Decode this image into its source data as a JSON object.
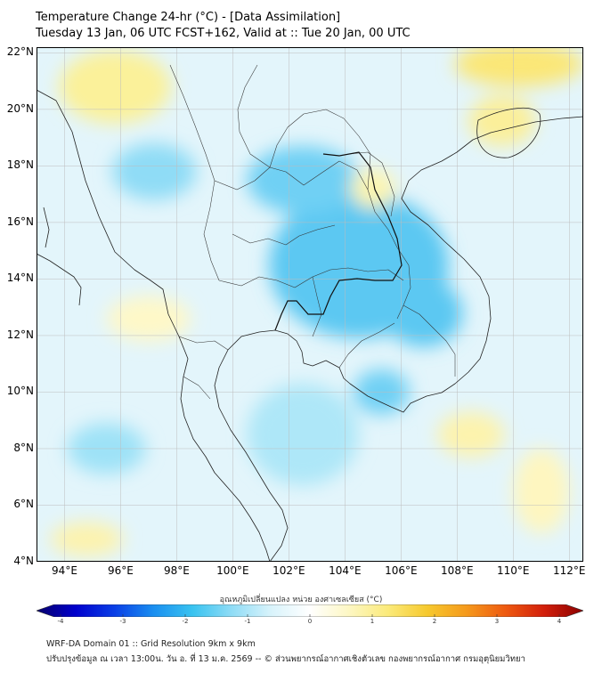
{
  "header": {
    "title_line1": "Temperature Change 24-hr (°C) - [Data Assimilation]",
    "title_line2": "Tuesday 13 Jan, 06 UTC FCST+162, Valid at :: Tue 20 Jan, 00 UTC"
  },
  "map": {
    "lat_labels": [
      {
        "value": 22,
        "label": "22°N"
      },
      {
        "value": 20,
        "label": "20°N"
      },
      {
        "value": 18,
        "label": "18°N"
      },
      {
        "value": 16,
        "label": "16°N"
      },
      {
        "value": 14,
        "label": "14°N"
      },
      {
        "value": 12,
        "label": "12°N"
      },
      {
        "value": 10,
        "label": "10°N"
      },
      {
        "value": 8,
        "label": "8°N"
      },
      {
        "value": 6,
        "label": "6°N"
      },
      {
        "value": 4,
        "label": "4°N"
      }
    ],
    "lon_labels": [
      {
        "value": 94,
        "label": "94°E"
      },
      {
        "value": 96,
        "label": "96°E"
      },
      {
        "value": 98,
        "label": "98°E"
      },
      {
        "value": 100,
        "label": "100°E"
      },
      {
        "value": 102,
        "label": "102°E"
      },
      {
        "value": 104,
        "label": "104°E"
      },
      {
        "value": 106,
        "label": "106°E"
      },
      {
        "value": 108,
        "label": "108°E"
      },
      {
        "value": 110,
        "label": "110°E"
      },
      {
        "value": 112,
        "label": "112°E"
      }
    ],
    "extent": {
      "lon_min": 93,
      "lon_max": 112.5,
      "lat_min": 4,
      "lat_max": 22.2
    },
    "field_blobs": [
      {
        "lon": 103.5,
        "lat": 14.0,
        "rx": 1.3,
        "ry": 1.0,
        "color": "#33b5ee"
      },
      {
        "lon": 104.5,
        "lat": 14.5,
        "rx": 3.2,
        "ry": 2.6,
        "color": "#5cc8f2"
      },
      {
        "lon": 102.5,
        "lat": 17.5,
        "rx": 2.0,
        "ry": 1.2,
        "color": "#6fd0f4"
      },
      {
        "lon": 106.8,
        "lat": 12.8,
        "rx": 1.4,
        "ry": 1.2,
        "color": "#5cc8f2"
      },
      {
        "lon": 105.3,
        "lat": 10.0,
        "rx": 1.0,
        "ry": 0.8,
        "color": "#6fd0f4"
      },
      {
        "lon": 97.2,
        "lat": 17.8,
        "rx": 1.5,
        "ry": 1.0,
        "color": "#8fdcf6"
      },
      {
        "lon": 95.5,
        "lat": 8.0,
        "rx": 1.4,
        "ry": 0.9,
        "color": "#9ee2f7"
      },
      {
        "lon": 102.5,
        "lat": 8.5,
        "rx": 2.0,
        "ry": 1.8,
        "color": "#aee7f8"
      },
      {
        "lon": 95.8,
        "lat": 20.8,
        "rx": 2.0,
        "ry": 1.3,
        "color": "#fbf19a"
      },
      {
        "lon": 110.2,
        "lat": 21.6,
        "rx": 2.3,
        "ry": 0.8,
        "color": "#fbe777"
      },
      {
        "lon": 109.6,
        "lat": 19.6,
        "rx": 1.2,
        "ry": 0.9,
        "color": "#fbef9a"
      },
      {
        "lon": 105.0,
        "lat": 17.2,
        "rx": 0.8,
        "ry": 0.7,
        "color": "#fdf5b0"
      },
      {
        "lon": 108.5,
        "lat": 8.5,
        "rx": 1.2,
        "ry": 0.8,
        "color": "#fdf3ad"
      },
      {
        "lon": 94.8,
        "lat": 4.8,
        "rx": 1.3,
        "ry": 0.6,
        "color": "#fdf3ad"
      },
      {
        "lon": 97.0,
        "lat": 12.6,
        "rx": 1.5,
        "ry": 0.8,
        "color": "#fef8c8"
      },
      {
        "lon": 111.0,
        "lat": 6.5,
        "rx": 1.0,
        "ry": 1.5,
        "color": "#fef6c0"
      }
    ]
  },
  "colorbar": {
    "label": "อุณหภูมิเปลี่ยนแปลง หน่วย องศาเซลเซียส (°C)",
    "min": -4,
    "max": 4,
    "ticks": [
      {
        "value": -4,
        "label": "-4"
      },
      {
        "value": -3,
        "label": "-3"
      },
      {
        "value": -2,
        "label": "-2"
      },
      {
        "value": -1,
        "label": "-1"
      },
      {
        "value": 0,
        "label": "0"
      },
      {
        "value": 1,
        "label": "1"
      },
      {
        "value": 2,
        "label": "2"
      },
      {
        "value": 3,
        "label": "3"
      },
      {
        "value": 4,
        "label": "4"
      }
    ],
    "colors": [
      "#08006b",
      "#0000cd",
      "#0a3fe6",
      "#1a8ff0",
      "#39c3f0",
      "#8fdcf6",
      "#d8f3fb",
      "#ffffff",
      "#fdf7c3",
      "#fbea7a",
      "#f6c92e",
      "#f59a1c",
      "#ee5a10",
      "#d21f0b",
      "#8b0000"
    ]
  },
  "footer": {
    "line1": "WRF-DA Domain 01 :: Grid Resolution 9km x 9km",
    "line2": "ปรับปรุงข้อมูล ณ เวลา 13:00น. วัน อ. ที่ 13 ม.ค. 2569 -- © ส่วนพยากรณ์อากาศเชิงตัวเลข กองพยากรณ์อากาศ กรมอุตุนิยมวิทยา"
  }
}
